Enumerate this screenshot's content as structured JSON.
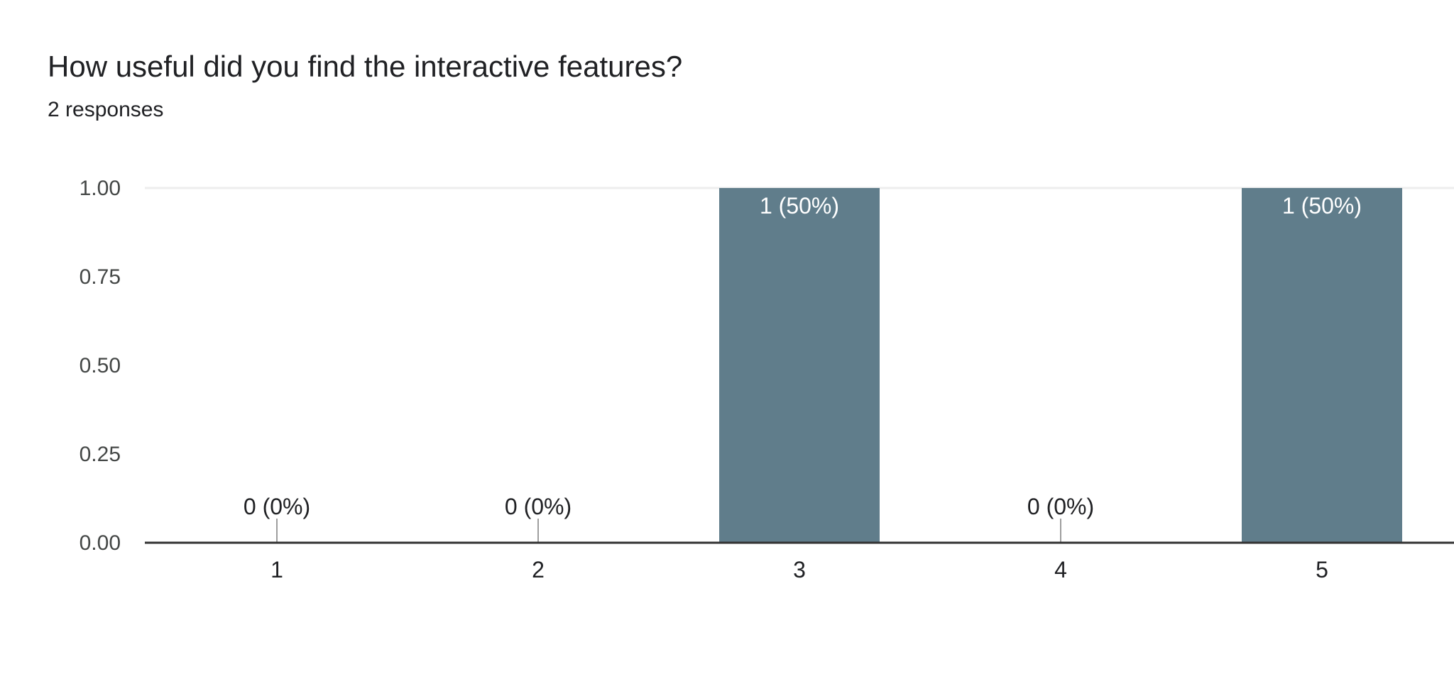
{
  "question": {
    "title": "How useful did you find the interactive features?",
    "responses": "2 responses"
  },
  "chart_data": {
    "type": "bar",
    "categories": [
      "1",
      "2",
      "3",
      "4",
      "5"
    ],
    "values": [
      0,
      0,
      1,
      0,
      1
    ],
    "data_labels": [
      "0 (0%)",
      "0 (0%)",
      "1 (50%)",
      "0 (0%)",
      "1 (50%)"
    ],
    "y_ticks": [
      "0.00",
      "0.25",
      "0.50",
      "0.75",
      "1.00"
    ],
    "ylim": [
      0,
      1
    ],
    "title": "",
    "xlabel": "",
    "ylabel": "",
    "grid": false,
    "bar_color": "#607d8b",
    "text_color": "#202124"
  }
}
